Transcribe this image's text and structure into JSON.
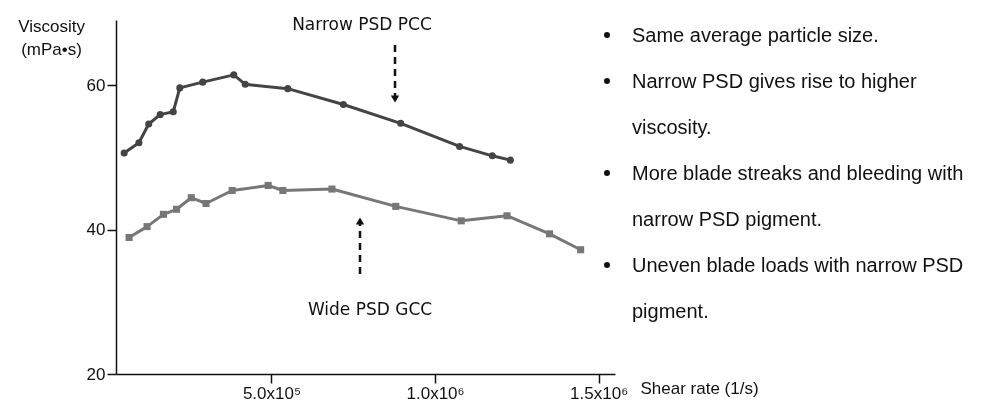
{
  "chart_data": {
    "type": "line",
    "xlabel": "Shear rate (1/s)",
    "ylabel": "Viscosity (mPa•s)",
    "xlim": [
      25000,
      1550000
    ],
    "ylim": [
      20,
      69
    ],
    "xticks": [
      {
        "value": 500000,
        "label": "5.0x10⁵"
      },
      {
        "value": 1000000,
        "label": "1.0x10⁶"
      },
      {
        "value": 1500000,
        "label": "1.5x10⁶"
      }
    ],
    "yticks": [
      20,
      40,
      60
    ],
    "grid": false,
    "series": [
      {
        "color": "#444444",
        "marker": "circle",
        "x": [
          50000,
          95000,
          125000,
          160000,
          200000,
          220000,
          290000,
          385000,
          420000,
          550000,
          720000,
          895000,
          1075000,
          1175000,
          1230000
        ],
        "values": [
          50.6,
          52.0,
          54.6,
          55.9,
          56.3,
          59.6,
          60.4,
          61.4,
          60.1,
          59.5,
          57.3,
          54.7,
          51.5,
          50.2,
          49.6
        ]
      },
      {
        "color": "#777777",
        "marker": "square",
        "x": [
          65000,
          120000,
          170000,
          210000,
          255000,
          300000,
          380000,
          490000,
          535000,
          685000,
          880000,
          1080000,
          1220000,
          1350000,
          1445000
        ],
        "values": [
          38.9,
          40.4,
          42.1,
          42.8,
          44.4,
          43.6,
          45.4,
          46.1,
          45.4,
          45.6,
          43.2,
          41.2,
          41.9,
          39.4,
          37.2
        ]
      }
    ],
    "annotations": [
      "Narrow PSD PCC",
      "Wide PSD GCC",
      "Same average particle size.",
      "Narrow PSD gives rise to higher viscosity.",
      "More blade streaks and bleeding with narrow PSD pigment.",
      "Uneven blade loads with narrow PSD pigment."
    ]
  }
}
